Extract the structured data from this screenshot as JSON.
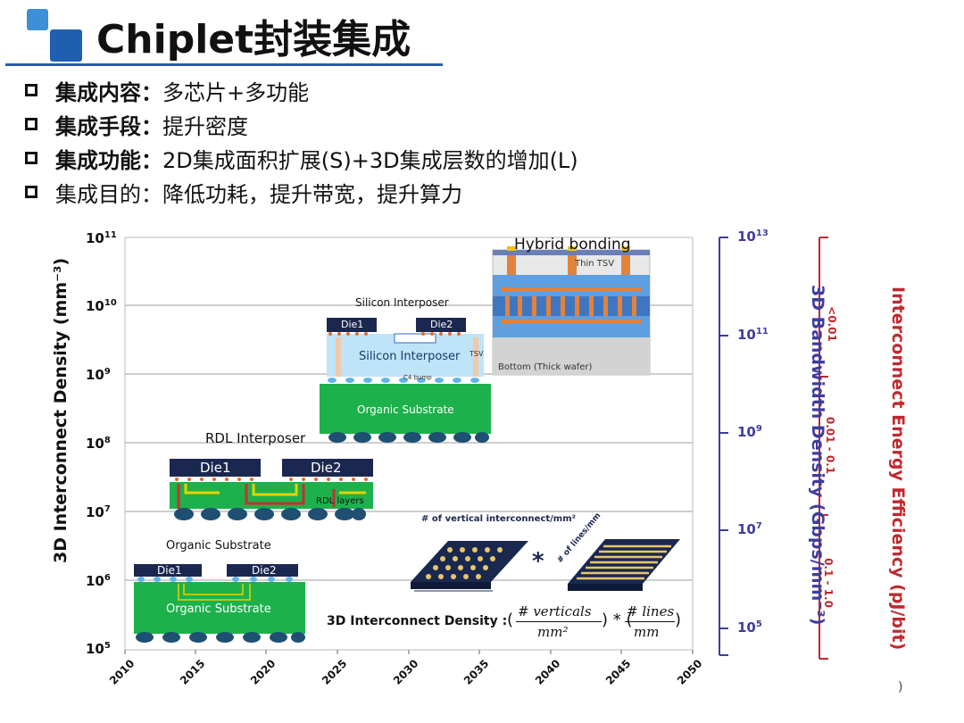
{
  "header": {
    "title": "Chiplet封装集成"
  },
  "bullets": [
    {
      "key": "集成内容：",
      "value": "多芯片+多功能"
    },
    {
      "key": "集成手段：",
      "value": "提升密度"
    },
    {
      "key": "集成功能：",
      "value": "2D集成面积扩展(S)+3D集成层数的增加(L)"
    },
    {
      "key": "集成目的：",
      "value": "降低功耗，提升带宽，提升算力"
    }
  ],
  "figure": {
    "left_axis_label": "3D Interconnect Density (mm⁻³)",
    "mid_axis_label": "3D Bandwidth Density (Gbps/mm⁻³)",
    "right_axis_label": "Interconnect Energy Efficiency (pJ/bit)",
    "left_ticks": [
      "10",
      "10",
      "10",
      "10",
      "10",
      "10",
      "10"
    ],
    "left_tick_exps": [
      "11",
      "10",
      "9",
      "8",
      "7",
      "6",
      "5"
    ],
    "mid_ticks": [
      "10",
      "10",
      "10",
      "10",
      "10"
    ],
    "mid_tick_exps": [
      "13",
      "11",
      "9",
      "7",
      "5"
    ],
    "right_ticks": [
      "<0.01",
      "0.01 - 0.1",
      "0.1 - 1.0"
    ],
    "x_ticks": [
      "2010",
      "2015",
      "2020",
      "2025",
      "2030",
      "2035",
      "2040",
      "2045",
      "2050"
    ],
    "hybrid": {
      "title": "Hybrid bonding",
      "thin_tsv": "Thin TSV",
      "bottom": "Bottom (Thick wafer)"
    },
    "silicon": {
      "title": "Silicon Interposer",
      "die1": "Die1",
      "die2": "Die2",
      "interposer": "Silicon Interposer",
      "tsv": "TSV",
      "c4": "C4 bump",
      "substrate": "Organic Substrate"
    },
    "rdl": {
      "title": "RDL Interposer",
      "die1": "Die1",
      "die2": "Die2",
      "layers": "RDL layers"
    },
    "organic": {
      "title": "Organic Substrate",
      "die1": "Die1",
      "die2": "Die2",
      "substrate": "Organic Substrate"
    },
    "diagram": {
      "vertical_label": "# of vertical interconnect/mm²",
      "lines_label": "# of lines/mm",
      "star": "*"
    },
    "formula": {
      "label": "3D Interconnect Density :",
      "num1": "# verticals",
      "den1": "mm²",
      "num2": "# lines",
      "den2": "mm"
    },
    "corner_mark": ")"
  },
  "colors": {
    "accent_blue": "#2b5da8",
    "axis_purple": "#3d3d9e",
    "axis_red": "#c0282d",
    "die_navy": "#1a2850",
    "substrate_green": "#1db14b",
    "interposer_blue": "#bfe3f7"
  }
}
